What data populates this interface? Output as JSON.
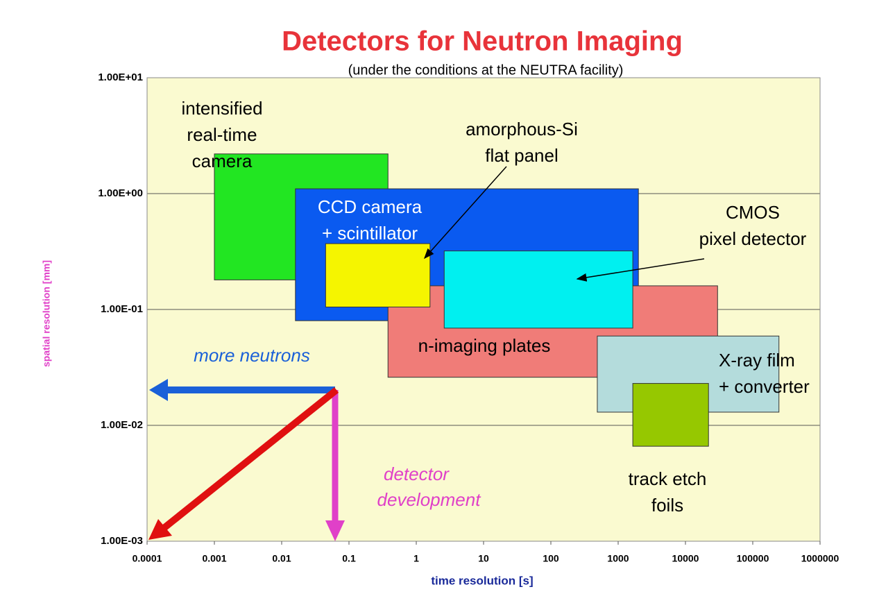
{
  "chart_data": {
    "type": "range-box",
    "title": "Detectors for Neutron Imaging",
    "subtitle": "(under the conditions at the NEUTRA facility)",
    "x_label": "time resolution [s]",
    "y_label": "spatial resolution [mm]",
    "xscale": "log",
    "yscale": "log",
    "grid": true,
    "xlim": [
      0.0001,
      1000000
    ],
    "xticks": [
      0.0001,
      0.001,
      0.01,
      0.1,
      1,
      10,
      100,
      1000,
      10000,
      100000,
      1000000
    ],
    "ylim": [
      0.001,
      10
    ],
    "yticks": [
      {
        "value": 0.001,
        "label": "1.00E-03"
      },
      {
        "value": 0.01,
        "label": "1.00E-02"
      },
      {
        "value": 0.1,
        "label": "1.00E-01"
      },
      {
        "value": 1,
        "label": "1.00E+00"
      },
      {
        "value": 10,
        "label": "1.00E+01"
      }
    ],
    "series": [
      {
        "label": [
          "intensified",
          "real-time",
          "camera"
        ],
        "x": [
          0.001,
          0.38
        ],
        "y": [
          0.18,
          2.2
        ],
        "color": "#22e622",
        "text_color": "#000000"
      },
      {
        "label": [
          "CCD camera",
          "+ scintillator"
        ],
        "x": [
          0.016,
          2000
        ],
        "y": [
          0.08,
          1.1
        ],
        "color": "#0a5af0",
        "text_color": "#ffffff"
      },
      {
        "label": [
          "n-imaging plates"
        ],
        "x": [
          0.38,
          30000
        ],
        "y": [
          0.026,
          0.16
        ],
        "color": "#f07c78",
        "text_color": "#000000"
      },
      {
        "label": [
          "CMOS",
          "pixel detector"
        ],
        "x": [
          2.6,
          1650
        ],
        "y": [
          0.069,
          0.32
        ],
        "color": "#00f0f0",
        "text_color": "#000000"
      },
      {
        "label": [
          "amorphous-Si",
          "flat panel"
        ],
        "x": [
          0.045,
          1.6
        ],
        "y": [
          0.105,
          0.37
        ],
        "color": "#f5f500",
        "text_color": "#000000"
      },
      {
        "label": [
          "X-ray film",
          "+ converter"
        ],
        "x": [
          490,
          245000
        ],
        "y": [
          0.013,
          0.059
        ],
        "color": "#b4dcdc",
        "text_color": "#000000"
      },
      {
        "label": [
          "track etch",
          "foils"
        ],
        "x": [
          1650,
          22000
        ],
        "y": [
          0.0066,
          0.023
        ],
        "color": "#96c800",
        "text_color": "#000000"
      }
    ],
    "annotations": [
      {
        "lines": [
          "more neutrons"
        ],
        "color": "#1a60d8"
      },
      {
        "lines": [
          "detector",
          "development"
        ],
        "color": "#e040c8"
      }
    ]
  }
}
